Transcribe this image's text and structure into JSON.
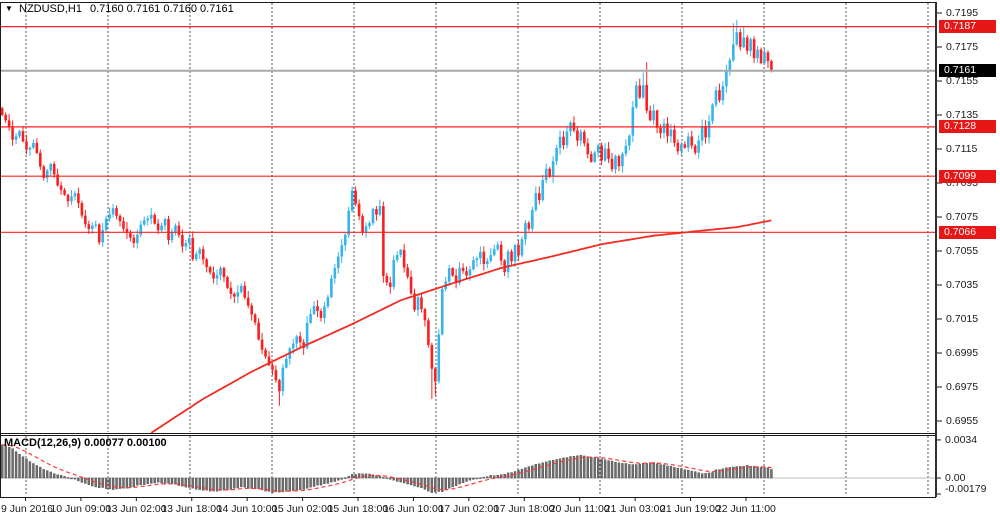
{
  "title": {
    "dropdown_icon": "▼",
    "symbol": "NZDUSD,H1",
    "ohlc": "0.7160 0.7161 0.7160 0.7161"
  },
  "indicator": {
    "name": "MACD(12,26,9)",
    "values_text": "0.00077 0.00100"
  },
  "colors": {
    "background": "#ffffff",
    "bull": "#35b4ec",
    "bear": "#fb2020",
    "neutral_bar": "#1f1f1f",
    "level_line": "#ff2222",
    "level_label_bg": "#e81717",
    "current_line": "#a8a8a8",
    "current_label_bg": "#000000",
    "ma_line": "#f harvested",
    "ma": "#f02c20",
    "grid": "#555555",
    "frame": "#2f2f2f",
    "histogram": "#6e6e6e",
    "signal": "#ff3838",
    "text": "#000000"
  },
  "chart_data": [
    {
      "type": "candlestick",
      "title": "NZDUSD H1",
      "bars": 223,
      "ylim": [
        0.6948,
        0.7196
      ],
      "grid": "vertical-day-separators",
      "legend_position": "none",
      "y_ticks": [
        "0.7195",
        "0.7175",
        "0.7155",
        "0.7135",
        "0.7115",
        "0.7095",
        "0.7075",
        "0.7055",
        "0.7035",
        "0.7015",
        "0.6995",
        "0.6975",
        "0.6955"
      ],
      "x_labels": [
        "9 Jun 2016",
        "10 Jun 09:00",
        "13 Jun 02:00",
        "13 Jun 18:00",
        "14 Jun 10:00",
        "15 Jun 02:00",
        "15 Jun 18:00",
        "16 Jun 10:00",
        "17 Jun 02:00",
        "17 Jun 18:00",
        "20 Jun 11:00",
        "21 Jun 03:00",
        "21 Jun 19:00",
        "22 Jun 11:00"
      ],
      "levels": [
        {
          "value": 0.7187,
          "label": "0.7187"
        },
        {
          "value": 0.7128,
          "label": "0.7128"
        },
        {
          "value": 0.7099,
          "label": "0.7099"
        },
        {
          "value": 0.7066,
          "label": "0.7066"
        }
      ],
      "current_price": {
        "value": 0.7161,
        "label": "0.7161"
      },
      "close_path": [
        [
          0,
          0.7136
        ],
        [
          2,
          0.7128
        ],
        [
          3,
          0.7121
        ],
        [
          5,
          0.7125
        ],
        [
          7,
          0.7114
        ],
        [
          9,
          0.7119
        ],
        [
          10,
          0.7112
        ],
        [
          12,
          0.7097
        ],
        [
          14,
          0.7106
        ],
        [
          16,
          0.7094
        ],
        [
          17,
          0.7091
        ],
        [
          19,
          0.7084
        ],
        [
          21,
          0.7089
        ],
        [
          23,
          0.7076
        ],
        [
          25,
          0.7067
        ],
        [
          27,
          0.7071
        ],
        [
          28,
          0.7061
        ],
        [
          30,
          0.7074
        ],
        [
          32,
          0.708
        ],
        [
          34,
          0.7073
        ],
        [
          36,
          0.7065
        ],
        [
          38,
          0.7059
        ],
        [
          40,
          0.7071
        ],
        [
          43,
          0.7076
        ],
        [
          45,
          0.7068
        ],
        [
          47,
          0.7073
        ],
        [
          48,
          0.7062
        ],
        [
          50,
          0.7069
        ],
        [
          52,
          0.7058
        ],
        [
          54,
          0.7063
        ],
        [
          55,
          0.705
        ],
        [
          57,
          0.7056
        ],
        [
          59,
          0.7045
        ],
        [
          61,
          0.7038
        ],
        [
          63,
          0.7045
        ],
        [
          65,
          0.7033
        ],
        [
          67,
          0.7028
        ],
        [
          69,
          0.7035
        ],
        [
          71,
          0.7022
        ],
        [
          73,
          0.7012
        ],
        [
          74,
          0.7003
        ],
        [
          76,
          0.6992
        ],
        [
          78,
          0.6984
        ],
        [
          80,
          0.6973
        ],
        [
          81,
          0.6987
        ],
        [
          83,
          0.6997
        ],
        [
          85,
          0.7005
        ],
        [
          87,
          0.6998
        ],
        [
          88,
          0.7012
        ],
        [
          90,
          0.7022
        ],
        [
          92,
          0.7016
        ],
        [
          94,
          0.7028
        ],
        [
          95,
          0.7038
        ],
        [
          97,
          0.7052
        ],
        [
          99,
          0.7064
        ],
        [
          100,
          0.7078
        ],
        [
          101,
          0.709
        ],
        [
          103,
          0.7075
        ],
        [
          104,
          0.7066
        ],
        [
          106,
          0.7072
        ],
        [
          107,
          0.708
        ],
        [
          108,
          0.7076
        ],
        [
          109,
          0.7082
        ],
        [
          110,
          0.704
        ],
        [
          112,
          0.7034
        ],
        [
          113,
          0.705
        ],
        [
          115,
          0.7056
        ],
        [
          116,
          0.7046
        ],
        [
          117,
          0.704
        ],
        [
          119,
          0.7021
        ],
        [
          120,
          0.7028
        ],
        [
          122,
          0.7014
        ],
        [
          124,
          0.6985
        ],
        [
          125,
          0.6979
        ],
        [
          127,
          0.7032
        ],
        [
          129,
          0.7044
        ],
        [
          131,
          0.7037
        ],
        [
          132,
          0.7046
        ],
        [
          134,
          0.7041
        ],
        [
          136,
          0.7049
        ],
        [
          138,
          0.7054
        ],
        [
          139,
          0.7047
        ],
        [
          141,
          0.7053
        ],
        [
          143,
          0.7059
        ],
        [
          144,
          0.705
        ],
        [
          145,
          0.7042
        ],
        [
          146,
          0.7054
        ],
        [
          147,
          0.7048
        ],
        [
          148,
          0.7058
        ],
        [
          149,
          0.7052
        ],
        [
          150,
          0.7062
        ],
        [
          151,
          0.7072
        ],
        [
          152,
          0.7068
        ],
        [
          153,
          0.708
        ],
        [
          154,
          0.709
        ],
        [
          155,
          0.7085
        ],
        [
          156,
          0.7096
        ],
        [
          157,
          0.7104
        ],
        [
          158,
          0.7098
        ],
        [
          159,
          0.7108
        ],
        [
          160,
          0.7116
        ],
        [
          161,
          0.7122
        ],
        [
          162,
          0.7117
        ],
        [
          163,
          0.7125
        ],
        [
          164,
          0.7131
        ],
        [
          165,
          0.7125
        ],
        [
          166,
          0.7119
        ],
        [
          167,
          0.7126
        ],
        [
          168,
          0.7119
        ],
        [
          169,
          0.7112
        ],
        [
          170,
          0.7107
        ],
        [
          171,
          0.7113
        ],
        [
          172,
          0.7117
        ],
        [
          173,
          0.7109
        ],
        [
          174,
          0.7115
        ],
        [
          175,
          0.7109
        ],
        [
          176,
          0.7103
        ],
        [
          177,
          0.711
        ],
        [
          178,
          0.7105
        ],
        [
          179,
          0.7112
        ],
        [
          180,
          0.7117
        ],
        [
          181,
          0.7122
        ],
        [
          182,
          0.714
        ],
        [
          183,
          0.7152
        ],
        [
          184,
          0.7146
        ],
        [
          185,
          0.7152
        ],
        [
          186,
          0.7138
        ],
        [
          187,
          0.7132
        ],
        [
          188,
          0.7138
        ],
        [
          189,
          0.7128
        ],
        [
          190,
          0.7124
        ],
        [
          191,
          0.713
        ],
        [
          192,
          0.7122
        ],
        [
          193,
          0.7126
        ],
        [
          194,
          0.7118
        ],
        [
          195,
          0.7114
        ],
        [
          196,
          0.7118
        ],
        [
          197,
          0.7115
        ],
        [
          198,
          0.7122
        ],
        [
          199,
          0.7117
        ],
        [
          200,
          0.7113
        ],
        [
          201,
          0.712
        ],
        [
          202,
          0.7128
        ],
        [
          203,
          0.7122
        ],
        [
          204,
          0.7132
        ],
        [
          205,
          0.7142
        ],
        [
          206,
          0.715
        ],
        [
          207,
          0.7144
        ],
        [
          208,
          0.7152
        ],
        [
          209,
          0.716
        ],
        [
          210,
          0.7168
        ],
        [
          211,
          0.7176
        ],
        [
          212,
          0.7183
        ],
        [
          213,
          0.7175
        ],
        [
          214,
          0.7181
        ],
        [
          215,
          0.7172
        ],
        [
          216,
          0.7179
        ],
        [
          217,
          0.7168
        ],
        [
          218,
          0.7174
        ],
        [
          219,
          0.7165
        ],
        [
          220,
          0.7171
        ],
        [
          221,
          0.7166
        ],
        [
          222,
          0.7161
        ]
      ],
      "spikes": [
        {
          "bar": 80,
          "type": "low",
          "value": 0.6964
        },
        {
          "bar": 101,
          "type": "high",
          "value": 0.7093
        },
        {
          "bar": 110,
          "type": "high",
          "value": 0.7084
        },
        {
          "bar": 124,
          "type": "low",
          "value": 0.6968
        },
        {
          "bar": 125,
          "type": "low",
          "value": 0.697
        },
        {
          "bar": 185,
          "type": "high",
          "value": 0.716
        },
        {
          "bar": 186,
          "type": "high",
          "value": 0.7166
        },
        {
          "bar": 211,
          "type": "high",
          "value": 0.7189
        },
        {
          "bar": 212,
          "type": "high",
          "value": 0.7191
        },
        {
          "bar": 214,
          "type": "high",
          "value": 0.7187
        }
      ],
      "ma_path": [
        [
          43,
          0.6948
        ],
        [
          58,
          0.6968
        ],
        [
          72,
          0.6984
        ],
        [
          87,
          0.6999
        ],
        [
          101,
          0.7012
        ],
        [
          115,
          0.7026
        ],
        [
          130,
          0.7036
        ],
        [
          144,
          0.7045
        ],
        [
          159,
          0.7052
        ],
        [
          173,
          0.7059
        ],
        [
          188,
          0.7064
        ],
        [
          202,
          0.7067
        ],
        [
          212,
          0.7069
        ],
        [
          222,
          0.7073
        ]
      ]
    },
    {
      "type": "bar",
      "title": "MACD(12,26,9)",
      "bars": 223,
      "ylim": [
        -0.00179,
        0.0042
      ],
      "y_ticks": [
        {
          "value": 0.0034,
          "label": "0.0034"
        },
        {
          "value": 0,
          "label": "0.00"
        },
        {
          "value": -0.00179,
          "label": "-0.00179"
        }
      ],
      "signal_period": 9,
      "last_values": {
        "macd": 0.00077,
        "signal": 0.001
      },
      "macd_path": [
        [
          0,
          0.003
        ],
        [
          3,
          0.0026
        ],
        [
          6,
          0.0019
        ],
        [
          9,
          0.0013
        ],
        [
          12,
          0.0008
        ],
        [
          16,
          0.0003
        ],
        [
          20,
          0
        ],
        [
          23,
          -0.0004
        ],
        [
          27,
          -0.0008
        ],
        [
          32,
          -0.001
        ],
        [
          36,
          -0.0009
        ],
        [
          40,
          -0.0006
        ],
        [
          45,
          -0.0004
        ],
        [
          49,
          -0.0005
        ],
        [
          53,
          -0.0008
        ],
        [
          58,
          -0.0011
        ],
        [
          62,
          -0.0012
        ],
        [
          66,
          -0.001
        ],
        [
          69,
          -0.0008
        ],
        [
          74,
          -0.001
        ],
        [
          78,
          -0.0013
        ],
        [
          82,
          -0.0012
        ],
        [
          87,
          -0.001
        ],
        [
          89,
          -0.0008
        ],
        [
          92,
          -0.0006
        ],
        [
          95,
          -0.0004
        ],
        [
          98,
          -0.0001
        ],
        [
          101,
          0.0003
        ],
        [
          104,
          0.0004
        ],
        [
          107,
          0.0003
        ],
        [
          110,
          0.0001
        ],
        [
          113,
          -0.0002
        ],
        [
          115,
          -0.0004
        ],
        [
          118,
          -0.0006
        ],
        [
          121,
          -0.0009
        ],
        [
          124,
          -0.0013
        ],
        [
          127,
          -0.0012
        ],
        [
          130,
          -0.0008
        ],
        [
          133,
          -0.0004
        ],
        [
          136,
          -0.0001
        ],
        [
          139,
          0.0001
        ],
        [
          141,
          0.0002
        ],
        [
          144,
          0.0003
        ],
        [
          147,
          0.0005
        ],
        [
          150,
          0.0008
        ],
        [
          153,
          0.0011
        ],
        [
          156,
          0.0014
        ],
        [
          159,
          0.0016
        ],
        [
          162,
          0.0018
        ],
        [
          164,
          0.0019
        ],
        [
          167,
          0.002
        ],
        [
          170,
          0.0019
        ],
        [
          173,
          0.0017
        ],
        [
          176,
          0.0015
        ],
        [
          179,
          0.0013
        ],
        [
          182,
          0.0012
        ],
        [
          185,
          0.0013
        ],
        [
          188,
          0.0014
        ],
        [
          189,
          0.0013
        ],
        [
          192,
          0.0011
        ],
        [
          195,
          0.0009
        ],
        [
          198,
          0.0007
        ],
        [
          201,
          0.0005
        ],
        [
          202,
          0.0004
        ],
        [
          205,
          0.0005
        ],
        [
          206,
          0.0007
        ],
        [
          209,
          0.0009
        ],
        [
          212,
          0.001
        ],
        [
          215,
          0.0011
        ],
        [
          218,
          0.001
        ],
        [
          221,
          0.0009
        ],
        [
          222,
          0.00077
        ]
      ]
    }
  ]
}
